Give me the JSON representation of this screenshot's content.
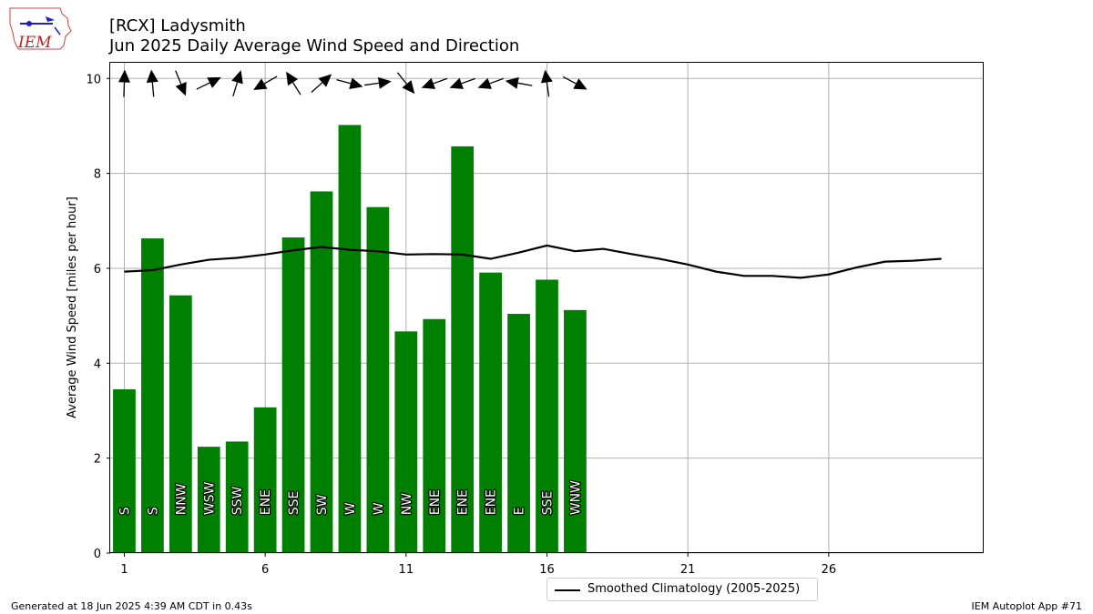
{
  "logo": {
    "text": "IEM",
    "icon": "iowa-state-outline-icon"
  },
  "title": {
    "line1": "[RCX] Ladysmith",
    "line2": "Jun 2025 Daily Average Wind Speed and Direction"
  },
  "footer": {
    "left": "Generated at 18 Jun 2025 4:39 AM CDT in 0.43s",
    "right": "IEM Autoplot App #71"
  },
  "legend": {
    "climatology_label": "Smoothed Climatology (2005-2025)"
  },
  "chart_data": {
    "type": "bar",
    "ylabel": "Average Wind Speed [miles per hour]",
    "xlabel": "",
    "xlim": [
      0.5,
      31.5
    ],
    "ylim": [
      0,
      10.35
    ],
    "xticks": [
      1,
      6,
      11,
      16,
      21,
      26
    ],
    "yticks": [
      0,
      2,
      4,
      6,
      8,
      10
    ],
    "grid": true,
    "bar_color": "#008000",
    "days": [
      1,
      2,
      3,
      4,
      5,
      6,
      7,
      8,
      9,
      10,
      11,
      12,
      13,
      14,
      15,
      16,
      17
    ],
    "avg_speed": [
      3.45,
      6.63,
      5.43,
      2.24,
      2.35,
      3.07,
      6.65,
      7.62,
      9.02,
      7.29,
      4.67,
      4.93,
      8.57,
      5.91,
      5.04,
      5.76,
      5.12
    ],
    "direction_labels": [
      "S",
      "S",
      "NNW",
      "WSW",
      "SSW",
      "ENE",
      "SSE",
      "SW",
      "W",
      "W",
      "NW",
      "ENE",
      "ENE",
      "ENE",
      "E",
      "SSE",
      "WNW"
    ],
    "direction_deg": [
      182,
      175,
      338,
      244,
      197,
      60,
      148,
      228,
      285,
      262,
      321,
      70,
      70,
      70,
      100,
      172,
      298
    ],
    "climatology": {
      "name": "Smoothed Climatology (2005-2025)",
      "days": [
        1,
        2,
        3,
        4,
        5,
        6,
        7,
        8,
        9,
        10,
        11,
        12,
        13,
        14,
        15,
        16,
        17,
        18,
        19,
        20,
        21,
        22,
        23,
        24,
        25,
        26,
        27,
        28,
        29,
        30
      ],
      "values": [
        5.93,
        5.96,
        6.08,
        6.18,
        6.22,
        6.29,
        6.38,
        6.45,
        6.39,
        6.36,
        6.29,
        6.3,
        6.29,
        6.2,
        6.33,
        6.48,
        6.36,
        6.41,
        6.3,
        6.2,
        6.08,
        5.93,
        5.84,
        5.84,
        5.8,
        5.87,
        6.02,
        6.14,
        6.16,
        6.2
      ]
    }
  }
}
